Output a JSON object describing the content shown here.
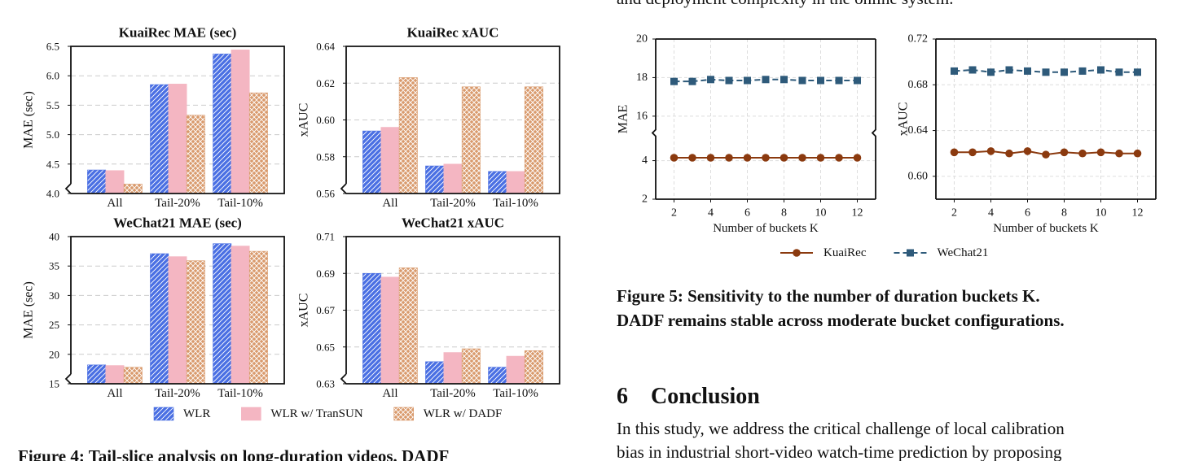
{
  "top_text": "and deployment complexity in the online system.",
  "figure4_caption": "Figure 4: Tail-slice analysis on long-duration videos. DADF",
  "figure5_caption": [
    "Figure 5: Sensitivity to the number of duration buckets K.",
    "DADF remains stable across moderate bucket configurations."
  ],
  "section": {
    "number": "6",
    "title": "Conclusion"
  },
  "body": [
    "In this study, we address the critical challenge of local calibration",
    "bias in industrial short-video watch-time prediction by proposing"
  ],
  "chart_data": [
    {
      "type": "bar",
      "title": "KuaiRec MAE (sec)",
      "ylabel": "MAE (sec)",
      "categories": [
        "All",
        "Tail-20%",
        "Tail-10%"
      ],
      "series": [
        {
          "name": "WLR",
          "color": "#4a6fe3",
          "hatch": "//",
          "values": [
            4.4,
            5.85,
            6.37
          ]
        },
        {
          "name": "WLR w/ TranSUN",
          "color": "#f4b6c2",
          "hatch": "\\\\",
          "values": [
            4.39,
            5.86,
            6.44
          ]
        },
        {
          "name": "WLR w/ DADF",
          "color": "#d99a6c",
          "hatch": "xx",
          "values": [
            4.16,
            5.33,
            5.71
          ]
        }
      ],
      "ylim": [
        4.0,
        6.5
      ],
      "yticks": [
        {
          "value": 4,
          "label": "4.0"
        },
        4.5,
        {
          "value": 5,
          "label": "5.0"
        },
        5.5,
        {
          "value": 6,
          "label": "6.0"
        },
        6.5
      ],
      "grid": true,
      "axis_break_mark": true
    },
    {
      "type": "bar",
      "title": "KuaiRec xAUC",
      "ylabel": "xAUC",
      "categories": [
        "All",
        "Tail-20%",
        "Tail-10%"
      ],
      "series": [
        {
          "color": "#4a6fe3",
          "hatch": "//",
          "values": [
            0.594,
            0.575,
            0.572
          ]
        },
        {
          "color": "#f4b6c2",
          "hatch": "\\\\",
          "values": [
            0.596,
            0.576,
            0.572
          ]
        },
        {
          "color": "#d99a6c",
          "hatch": "xx",
          "values": [
            0.623,
            0.618,
            0.618
          ]
        }
      ],
      "ylim": [
        0.56,
        0.64
      ],
      "yticks": [
        0.56,
        0.58,
        {
          "value": 0.6,
          "label": "0.60"
        },
        0.62,
        0.64
      ],
      "grid": true,
      "axis_break_mark": true
    },
    {
      "type": "bar",
      "title": "WeChat21 MAE (sec)",
      "ylabel": "MAE (sec)",
      "categories": [
        "All",
        "Tail-20%",
        "Tail-10%"
      ],
      "series": [
        {
          "color": "#4a6fe3",
          "hatch": "//",
          "values": [
            18.2,
            37.1,
            38.8
          ]
        },
        {
          "color": "#f4b6c2",
          "hatch": "\\\\",
          "values": [
            18.1,
            36.6,
            38.4
          ]
        },
        {
          "color": "#d99a6c",
          "hatch": "xx",
          "values": [
            17.8,
            35.9,
            37.5
          ]
        }
      ],
      "ylim": [
        15,
        40
      ],
      "yticks": [
        15,
        20,
        25,
        30,
        35,
        40
      ],
      "grid": true,
      "axis_break_mark": true
    },
    {
      "type": "bar",
      "title": "WeChat21 xAUC",
      "ylabel": "xAUC",
      "categories": [
        "All",
        "Tail-20%",
        "Tail-10%"
      ],
      "series": [
        {
          "color": "#4a6fe3",
          "hatch": "//",
          "values": [
            0.69,
            0.642,
            0.639
          ]
        },
        {
          "color": "#f4b6c2",
          "hatch": "\\\\",
          "values": [
            0.688,
            0.647,
            0.645
          ]
        },
        {
          "color": "#d99a6c",
          "hatch": "xx",
          "values": [
            0.693,
            0.649,
            0.648
          ]
        }
      ],
      "ylim": [
        0.63,
        0.71
      ],
      "yticks": [
        0.63,
        0.65,
        0.67,
        0.69,
        0.71
      ],
      "grid": true,
      "axis_break_mark": true
    },
    {
      "type": "line",
      "ylabel": "MAE",
      "xlabel": "Number of buckets K",
      "x": [
        2,
        3,
        4,
        5,
        6,
        7,
        8,
        9,
        10,
        11,
        12
      ],
      "xlim": [
        1,
        13
      ],
      "xticks": [
        2,
        4,
        6,
        8,
        10,
        12
      ],
      "series": [
        {
          "name": "KuaiRec",
          "color": "#8b3a0f",
          "marker": "circle",
          "dash": "solid",
          "values": [
            4.15,
            4.15,
            4.15,
            4.15,
            4.15,
            4.15,
            4.15,
            4.15,
            4.15,
            4.15,
            4.15
          ]
        },
        {
          "name": "WeChat21",
          "color": "#2e5a7a",
          "marker": "square",
          "dash": "dashed",
          "values": [
            17.8,
            17.8,
            17.9,
            17.85,
            17.85,
            17.9,
            17.9,
            17.85,
            17.85,
            17.85,
            17.85
          ]
        }
      ],
      "ylim": [
        2,
        20
      ],
      "ybreak": [
        5.1,
        15.3
      ],
      "yticks": [
        2,
        4,
        16,
        18,
        20
      ],
      "grid": true
    },
    {
      "type": "line",
      "ylabel": "xAUC",
      "xlabel": "Number of buckets K",
      "x": [
        2,
        3,
        4,
        5,
        6,
        7,
        8,
        9,
        10,
        11,
        12
      ],
      "xlim": [
        1,
        13
      ],
      "xticks": [
        2,
        4,
        6,
        8,
        10,
        12
      ],
      "series": [
        {
          "color": "#8b3a0f",
          "marker": "circle",
          "dash": "solid",
          "values": [
            0.621,
            0.621,
            0.622,
            0.62,
            0.622,
            0.619,
            0.621,
            0.62,
            0.621,
            0.62,
            0.62
          ]
        },
        {
          "color": "#2e5a7a",
          "marker": "square",
          "dash": "dashed",
          "values": [
            0.692,
            0.693,
            0.691,
            0.693,
            0.692,
            0.691,
            0.691,
            0.692,
            0.693,
            0.691,
            0.691
          ]
        }
      ],
      "ylim": [
        0.58,
        0.72
      ],
      "yticks": [
        {
          "value": 0.6,
          "label": "0.60"
        },
        0.64,
        0.68,
        0.72
      ],
      "grid": true
    }
  ]
}
